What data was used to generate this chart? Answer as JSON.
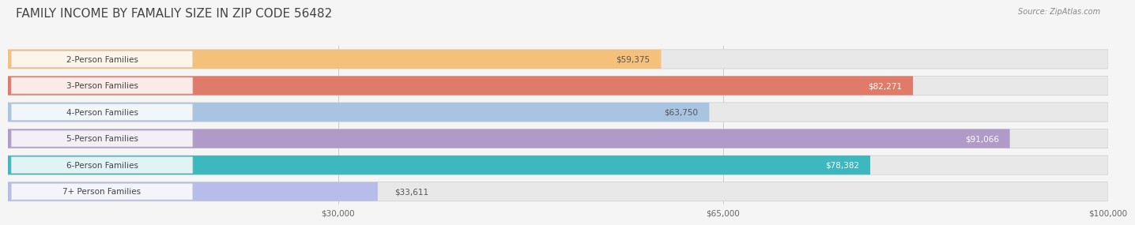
{
  "title": "FAMILY INCOME BY FAMALIY SIZE IN ZIP CODE 56482",
  "source": "Source: ZipAtlas.com",
  "categories": [
    "2-Person Families",
    "3-Person Families",
    "4-Person Families",
    "5-Person Families",
    "6-Person Families",
    "7+ Person Families"
  ],
  "values": [
    59375,
    82271,
    63750,
    91066,
    78382,
    33611
  ],
  "colors": [
    "#f5c07a",
    "#e07b6a",
    "#a8c4e0",
    "#b09ac8",
    "#3db8be",
    "#b8bce8"
  ],
  "bar_label_colors": [
    "#555555",
    "#ffffff",
    "#555555",
    "#ffffff",
    "#ffffff",
    "#555555"
  ],
  "xlim": [
    0,
    100000
  ],
  "xticks": [
    30000,
    65000,
    100000
  ],
  "xtick_labels": [
    "$30,000",
    "$65,000",
    "$100,000"
  ],
  "background_color": "#f5f5f5",
  "bar_bg_color": "#e8e8e8",
  "title_color": "#444444",
  "title_fontsize": 11,
  "label_fontsize": 7.5,
  "value_fontsize": 7.5,
  "source_fontsize": 7
}
